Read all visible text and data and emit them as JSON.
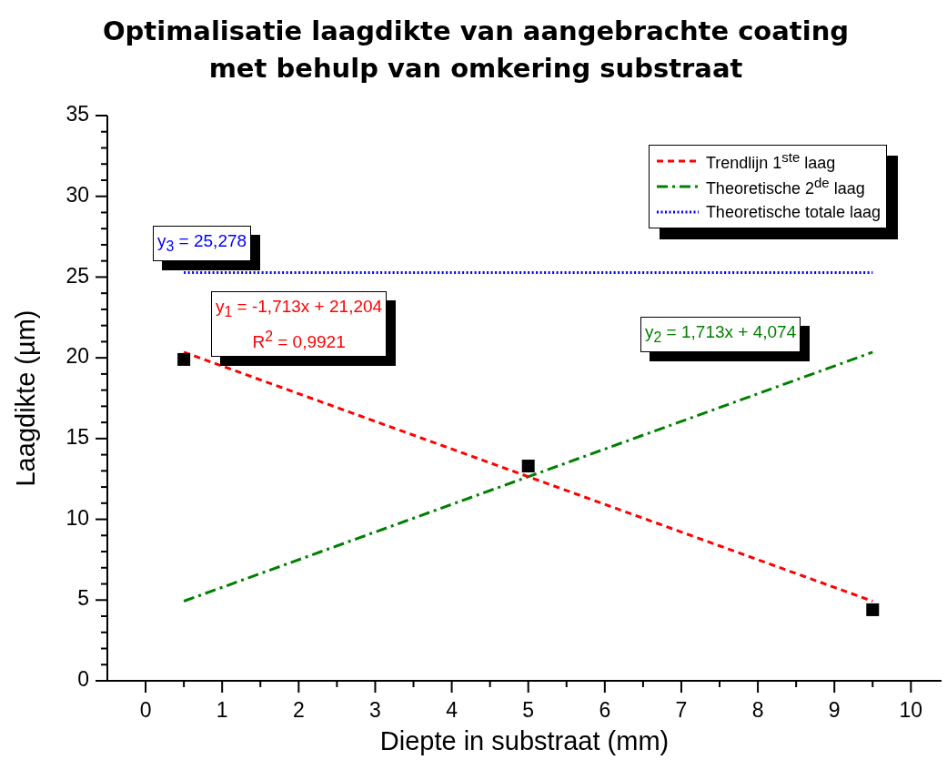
{
  "chart_data": {
    "type": "scatter",
    "title": "Optimalisatie laagdikte van aangebrachte coating\nmet behulp van omkering substraat",
    "xlabel": "Diepte in substraat (mm)",
    "ylabel": "Laagdikte (µm)",
    "xlim": [
      -0.5,
      10.4
    ],
    "ylim": [
      0,
      35
    ],
    "xticks": [
      0,
      {
        "value": 0.5,
        "label": null
      },
      1,
      {
        "value": 1.5,
        "label": null
      },
      2,
      {
        "value": 2.5,
        "label": null
      },
      3,
      {
        "value": 3.5,
        "label": null
      },
      4,
      {
        "value": 4.5,
        "label": null
      },
      5,
      {
        "value": 5.5,
        "label": null
      },
      6,
      {
        "value": 6.5,
        "label": null
      },
      7,
      {
        "value": 7.5,
        "label": null
      },
      8,
      {
        "value": 8.5,
        "label": null
      },
      9,
      {
        "value": 9.5,
        "label": null
      },
      10
    ],
    "yticks": [
      0,
      {
        "value": 1,
        "label": null
      },
      {
        "value": 2,
        "label": null
      },
      {
        "value": 3,
        "label": null
      },
      {
        "value": 4,
        "label": null
      },
      5,
      {
        "value": 6,
        "label": null
      },
      {
        "value": 7,
        "label": null
      },
      {
        "value": 8,
        "label": null
      },
      {
        "value": 9,
        "label": null
      },
      10,
      {
        "value": 11,
        "label": null
      },
      {
        "value": 12,
        "label": null
      },
      {
        "value": 13,
        "label": null
      },
      {
        "value": 14,
        "label": null
      },
      15,
      {
        "value": 16,
        "label": null
      },
      {
        "value": 17,
        "label": null
      },
      {
        "value": 18,
        "label": null
      },
      {
        "value": 19,
        "label": null
      },
      20,
      {
        "value": 21,
        "label": null
      },
      {
        "value": 22,
        "label": null
      },
      {
        "value": 23,
        "label": null
      },
      {
        "value": 24,
        "label": null
      },
      25,
      {
        "value": 26,
        "label": null
      },
      {
        "value": 27,
        "label": null
      },
      {
        "value": 28,
        "label": null
      },
      {
        "value": 29,
        "label": null
      },
      30,
      {
        "value": 31,
        "label": null
      },
      {
        "value": 32,
        "label": null
      },
      {
        "value": 33,
        "label": null
      },
      {
        "value": 34,
        "label": null
      },
      35
    ],
    "grid": false,
    "legend": "top right",
    "series": [
      {
        "color": "#000000",
        "marker": "square",
        "x": [
          0.5,
          5,
          9.5
        ],
        "values": [
          19.9,
          13.3,
          4.4
        ]
      },
      {
        "type": "line",
        "name": "Trendlijn 1$^{ste}$ laag",
        "color": "#ff0000",
        "line_style": "dashed",
        "x": [
          0.5,
          9.5
        ],
        "values": [
          20.35,
          4.93
        ]
      },
      {
        "type": "line",
        "name": "Theoretische 2$^{de}$ laag",
        "color": "#008000",
        "line_style": "dashdot",
        "x": [
          0.5,
          9.5
        ],
        "values": [
          4.93,
          20.35
        ]
      },
      {
        "type": "line",
        "name": "Theoretische totale laag",
        "color": "#0000ff",
        "line_style": "dotted",
        "x": [
          0.5,
          9.5
        ],
        "values": [
          25.278,
          25.278
        ]
      }
    ],
    "annotations": [
      "y$_{3}$ = 25,278",
      "y$_{1}$ = -1,713x + 21,204\nR$^{2}$ = 0,9921",
      "y$_{2}$ = 1,713x + 4,074"
    ]
  }
}
